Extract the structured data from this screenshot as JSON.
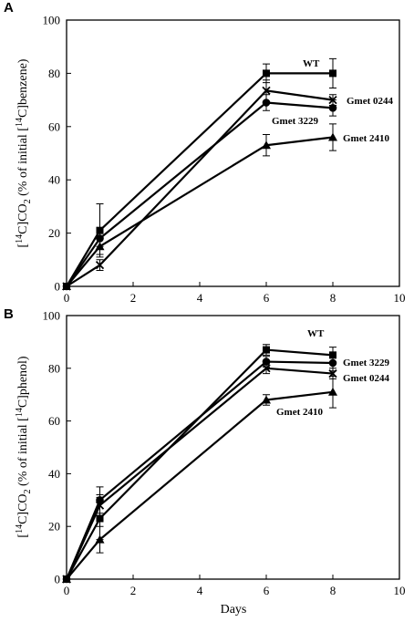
{
  "chart_data": [
    {
      "panel": "A",
      "type": "line",
      "ylabel": "[14C]CO2 (% of initial [14C]benzene)",
      "ylabel_parts": [
        "[",
        "14",
        "C]CO",
        "2",
        " (% of initial [",
        "14",
        "C]benzene)"
      ],
      "xlabel": "",
      "xlim": [
        0,
        10
      ],
      "ylim": [
        0,
        100
      ],
      "x_ticks": [
        "0",
        "2",
        "4",
        "6",
        "8",
        "10"
      ],
      "y_ticks": [
        "0",
        "20",
        "40",
        "60",
        "80",
        "100"
      ],
      "x": [
        0,
        1,
        6,
        8
      ],
      "series": [
        {
          "name": "WT",
          "marker": "square",
          "values": [
            0,
            21,
            80,
            80
          ],
          "errors": [
            0,
            10,
            3.5,
            5.5
          ]
        },
        {
          "name": "Gmet 0244",
          "marker": "x",
          "values": [
            0,
            8,
            73.5,
            70
          ],
          "errors": [
            0,
            2,
            4,
            2
          ]
        },
        {
          "name": "Gmet 3229",
          "marker": "circle",
          "values": [
            0,
            18,
            69,
            67
          ],
          "errors": [
            0,
            3,
            3,
            3
          ]
        },
        {
          "name": "Gmet 2410",
          "marker": "triangle",
          "values": [
            0,
            15,
            53,
            56
          ],
          "errors": [
            0,
            3,
            4,
            5
          ]
        }
      ]
    },
    {
      "panel": "B",
      "type": "line",
      "ylabel": "[14C]CO2 (% of initial [14C]phenol)",
      "ylabel_parts": [
        "[",
        "14",
        "C]CO",
        "2",
        " (% of initial [",
        "14",
        "C]phenol)"
      ],
      "xlabel": "Days",
      "xlim": [
        0,
        10
      ],
      "ylim": [
        0,
        100
      ],
      "x_ticks": [
        "0",
        "2",
        "4",
        "6",
        "8",
        "10"
      ],
      "y_ticks": [
        "0",
        "20",
        "40",
        "60",
        "80",
        "100"
      ],
      "x": [
        0,
        1,
        6,
        8
      ],
      "series": [
        {
          "name": "WT",
          "marker": "square",
          "values": [
            0,
            23,
            87,
            85
          ],
          "errors": [
            0,
            8,
            2,
            3
          ]
        },
        {
          "name": "Gmet 3229",
          "marker": "circle",
          "values": [
            0,
            30,
            82.5,
            82
          ],
          "errors": [
            0,
            5,
            2,
            3
          ]
        },
        {
          "name": "Gmet 0244",
          "marker": "x",
          "values": [
            0,
            28,
            80,
            78
          ],
          "errors": [
            0,
            4,
            2,
            2
          ]
        },
        {
          "name": "Gmet 2410",
          "marker": "triangle",
          "values": [
            0,
            15,
            68,
            71
          ],
          "errors": [
            0,
            5,
            2,
            6
          ]
        }
      ]
    }
  ]
}
